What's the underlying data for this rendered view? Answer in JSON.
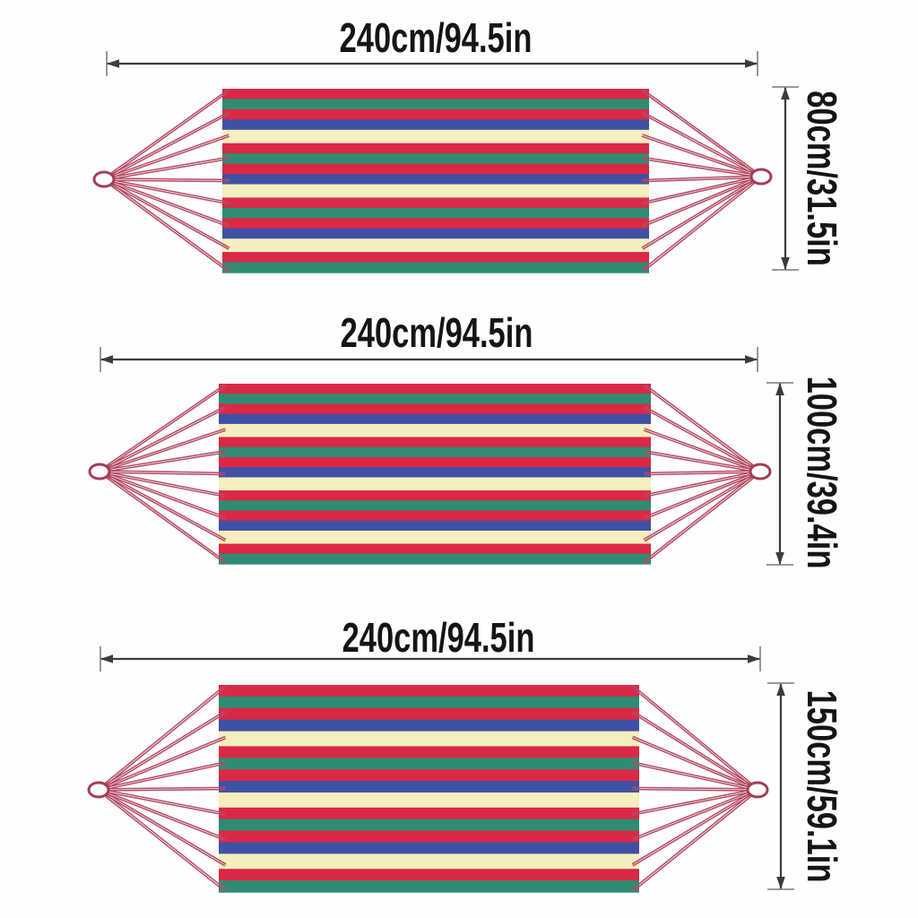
{
  "figures": [
    {
      "width_label": "240cm/94.5in",
      "height_label": "80cm/31.5in"
    },
    {
      "width_label": "240cm/94.5in",
      "height_label": "100cm/39.4in"
    },
    {
      "width_label": "240cm/94.5in",
      "height_label": "150cm/59.1in"
    }
  ],
  "stripe_pattern": {
    "sequence": [
      "red",
      "green",
      "red",
      "blue",
      "cream",
      "red",
      "green",
      "red",
      "blue",
      "cream",
      "red",
      "green",
      "red",
      "blue",
      "cream",
      "red",
      "green"
    ],
    "colors": {
      "red": "#DB2846",
      "green": "#2F8C74",
      "blue": "#3F51A4",
      "cream": "#F5EEBE"
    }
  },
  "style_colors": {
    "rope": "#B54A64",
    "ring_fill": "#FFFFFF",
    "ring_stroke": "#A43E58",
    "dimension_line": "#3C3C3C",
    "tick": "#8C8C8C",
    "text": "#151515",
    "background": "#FEFEFE"
  }
}
